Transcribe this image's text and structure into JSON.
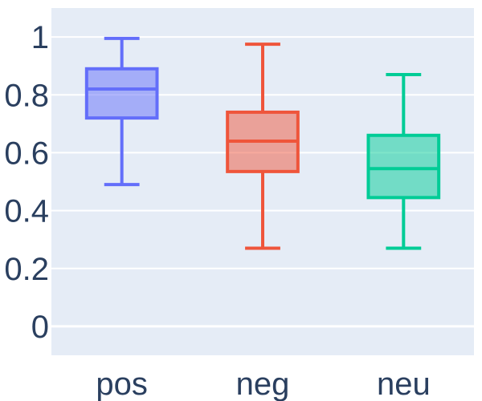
{
  "chart_data": {
    "type": "box",
    "title": "",
    "xlabel": "",
    "ylabel": "",
    "categories": [
      "pos",
      "neg",
      "neu"
    ],
    "ylim": [
      -0.1,
      1.1
    ],
    "yticks": [
      0,
      0.2,
      0.4,
      0.6,
      0.8,
      1
    ],
    "ytick_labels": [
      "0",
      "0.2",
      "0.4",
      "0.6",
      "0.8",
      "1"
    ],
    "grid": true,
    "legend": "none",
    "background_color": "#e5ecf6",
    "series": [
      {
        "category": "pos",
        "color": "#636efa",
        "min": 0.49,
        "q1": 0.72,
        "median": 0.82,
        "q3": 0.89,
        "max": 0.995
      },
      {
        "category": "neg",
        "color": "#ef553b",
        "min": 0.27,
        "q1": 0.535,
        "median": 0.64,
        "q3": 0.74,
        "max": 0.975
      },
      {
        "category": "neu",
        "color": "#00cc96",
        "min": 0.27,
        "q1": 0.445,
        "median": 0.545,
        "q3": 0.66,
        "max": 0.87
      }
    ]
  }
}
